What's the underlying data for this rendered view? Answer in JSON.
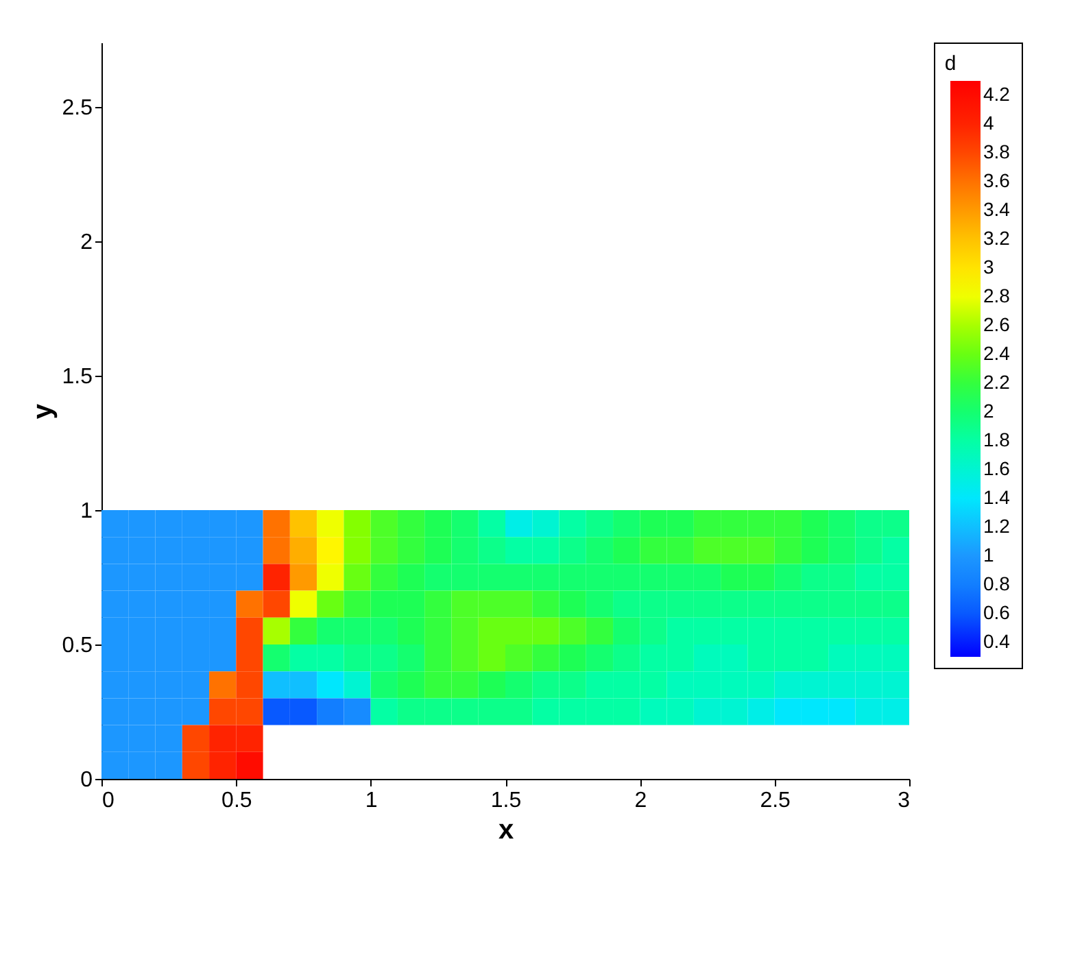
{
  "chart_data": {
    "type": "heatmap",
    "xlabel": "x",
    "ylabel": "y",
    "clabel": "d",
    "xlim": [
      0,
      3
    ],
    "xticks": [
      0,
      0.5,
      1,
      1.5,
      2,
      2.5,
      3
    ],
    "ylim": [
      0,
      2.74
    ],
    "yticks": [
      0,
      0.5,
      1,
      1.5,
      2,
      2.5
    ],
    "clim": [
      0.3,
      4.3
    ],
    "cticks": [
      0.4,
      0.6,
      0.8,
      1,
      1.2,
      1.4,
      1.6,
      1.8,
      2,
      2.2,
      2.4,
      2.6,
      2.8,
      3,
      3.2,
      3.4,
      3.6,
      3.8,
      4,
      4.2
    ],
    "x": [
      0.05,
      0.15,
      0.25,
      0.35,
      0.45,
      0.55,
      0.65,
      0.75,
      0.85,
      0.95,
      1.05,
      1.15,
      1.25,
      1.35,
      1.45,
      1.55,
      1.65,
      1.75,
      1.85,
      1.95,
      2.05,
      2.15,
      2.25,
      2.35,
      2.45,
      2.55,
      2.65,
      2.75,
      2.85,
      2.95
    ],
    "y": [
      0.95,
      0.85,
      0.75,
      0.65,
      0.55,
      0.45,
      0.35,
      0.25,
      0.15,
      0.05
    ],
    "cells": [
      [
        1,
        1,
        1,
        1,
        1,
        1,
        3.6,
        3.2,
        2.8,
        2.5,
        2.3,
        2.2,
        2.1,
        2,
        1.8,
        1.5,
        1.6,
        1.8,
        1.9,
        2,
        2.1,
        2.1,
        2.2,
        2.2,
        2.2,
        2.2,
        2.1,
        2,
        1.9,
        1.9
      ],
      [
        1,
        1,
        1,
        1,
        1,
        1,
        3.6,
        3.3,
        2.9,
        2.5,
        2.3,
        2.2,
        2.1,
        2,
        1.9,
        1.8,
        1.8,
        1.9,
        2,
        2.1,
        2.2,
        2.2,
        2.3,
        2.3,
        2.3,
        2.2,
        2.1,
        2,
        1.9,
        1.8
      ],
      [
        1,
        1,
        1,
        1,
        1,
        1,
        4,
        3.4,
        2.8,
        2.4,
        2.2,
        2.1,
        2,
        2,
        2,
        2,
        2,
        2,
        2,
        2,
        2,
        2,
        2,
        2.1,
        2.1,
        2,
        1.9,
        1.9,
        1.8,
        1.8
      ],
      [
        1,
        1,
        1,
        1,
        1,
        3.6,
        3.8,
        2.8,
        2.4,
        2.2,
        2.1,
        2.1,
        2.2,
        2.3,
        2.3,
        2.3,
        2.2,
        2.1,
        2,
        1.9,
        1.9,
        1.9,
        1.9,
        1.9,
        1.9,
        1.9,
        1.9,
        1.9,
        1.9,
        1.9
      ],
      [
        1,
        1,
        1,
        1,
        1,
        3.8,
        2.6,
        2.2,
        2,
        2,
        2,
        2.1,
        2.2,
        2.3,
        2.4,
        2.4,
        2.4,
        2.3,
        2.2,
        2,
        1.9,
        1.8,
        1.8,
        1.8,
        1.8,
        1.8,
        1.8,
        1.8,
        1.8,
        1.8
      ],
      [
        1,
        1,
        1,
        1,
        1,
        3.8,
        2,
        1.8,
        1.8,
        1.9,
        1.9,
        2,
        2.2,
        2.3,
        2.4,
        2.3,
        2.2,
        2.1,
        2,
        1.9,
        1.8,
        1.8,
        1.7,
        1.7,
        1.8,
        1.8,
        1.8,
        1.7,
        1.7,
        1.7
      ],
      [
        1,
        1,
        1,
        1,
        3.6,
        3.8,
        1.2,
        1.2,
        1.4,
        1.6,
        2,
        2.1,
        2.2,
        2.2,
        2.1,
        2,
        1.9,
        1.9,
        1.8,
        1.8,
        1.8,
        1.7,
        1.7,
        1.7,
        1.7,
        1.6,
        1.6,
        1.6,
        1.6,
        1.6
      ],
      [
        1,
        1,
        1,
        1,
        3.8,
        3.8,
        0.6,
        0.6,
        0.8,
        0.9,
        1.8,
        1.9,
        1.9,
        1.9,
        1.9,
        1.9,
        1.8,
        1.8,
        1.8,
        1.8,
        1.7,
        1.7,
        1.6,
        1.6,
        1.5,
        1.4,
        1.4,
        1.4,
        1.5,
        1.5
      ],
      [
        1,
        1,
        1,
        3.8,
        4,
        4,
        null,
        null,
        null,
        null,
        null,
        null,
        null,
        null,
        null,
        null,
        null,
        null,
        null,
        null,
        null,
        null,
        null,
        null,
        null,
        null,
        null,
        null,
        null,
        null
      ],
      [
        1,
        1,
        1,
        3.8,
        4,
        4.2,
        null,
        null,
        null,
        null,
        null,
        null,
        null,
        null,
        null,
        null,
        null,
        null,
        null,
        null,
        null,
        null,
        null,
        null,
        null,
        null,
        null,
        null,
        null,
        null
      ]
    ]
  }
}
